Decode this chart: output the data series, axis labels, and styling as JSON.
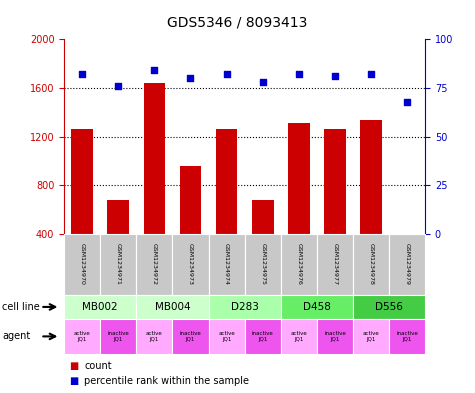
{
  "title": "GDS5346 / 8093413",
  "samples": [
    "GSM1234970",
    "GSM1234971",
    "GSM1234972",
    "GSM1234973",
    "GSM1234974",
    "GSM1234975",
    "GSM1234976",
    "GSM1234977",
    "GSM1234978",
    "GSM1234979"
  ],
  "counts": [
    1260,
    680,
    1640,
    960,
    1260,
    680,
    1310,
    1260,
    1340,
    400
  ],
  "percentiles": [
    82,
    76,
    84,
    80,
    82,
    78,
    82,
    81,
    82,
    68
  ],
  "bar_color": "#cc0000",
  "dot_color": "#0000cc",
  "ylim_left": [
    400,
    2000
  ],
  "ylim_right": [
    0,
    100
  ],
  "yticks_left": [
    400,
    800,
    1200,
    1600,
    2000
  ],
  "yticks_right": [
    0,
    25,
    50,
    75,
    100
  ],
  "cell_lines": [
    {
      "label": "MB002",
      "start": 0,
      "end": 2,
      "color": "#ccffcc"
    },
    {
      "label": "MB004",
      "start": 2,
      "end": 4,
      "color": "#ccffcc"
    },
    {
      "label": "D283",
      "start": 4,
      "end": 6,
      "color": "#aaffaa"
    },
    {
      "label": "D458",
      "start": 6,
      "end": 8,
      "color": "#66ee66"
    },
    {
      "label": "D556",
      "start": 8,
      "end": 10,
      "color": "#44cc44"
    }
  ],
  "agent_labels": [
    "active\nJQ1",
    "inactive\nJQ1",
    "active\nJQ1",
    "inactive\nJQ1",
    "active\nJQ1",
    "inactive\nJQ1",
    "active\nJQ1",
    "inactive\nJQ1",
    "active\nJQ1",
    "inactive\nJQ1"
  ],
  "agent_colors": [
    "#ffaaff",
    "#ee55ee",
    "#ffaaff",
    "#ee55ee",
    "#ffaaff",
    "#ee55ee",
    "#ffaaff",
    "#ee55ee",
    "#ffaaff",
    "#ee55ee"
  ],
  "sample_box_color": "#c8c8c8",
  "tick_color_left": "#cc0000",
  "tick_color_right": "#0000cc",
  "grid_color": "#000000",
  "legend_count_color": "#cc0000",
  "legend_dot_color": "#0000cc"
}
